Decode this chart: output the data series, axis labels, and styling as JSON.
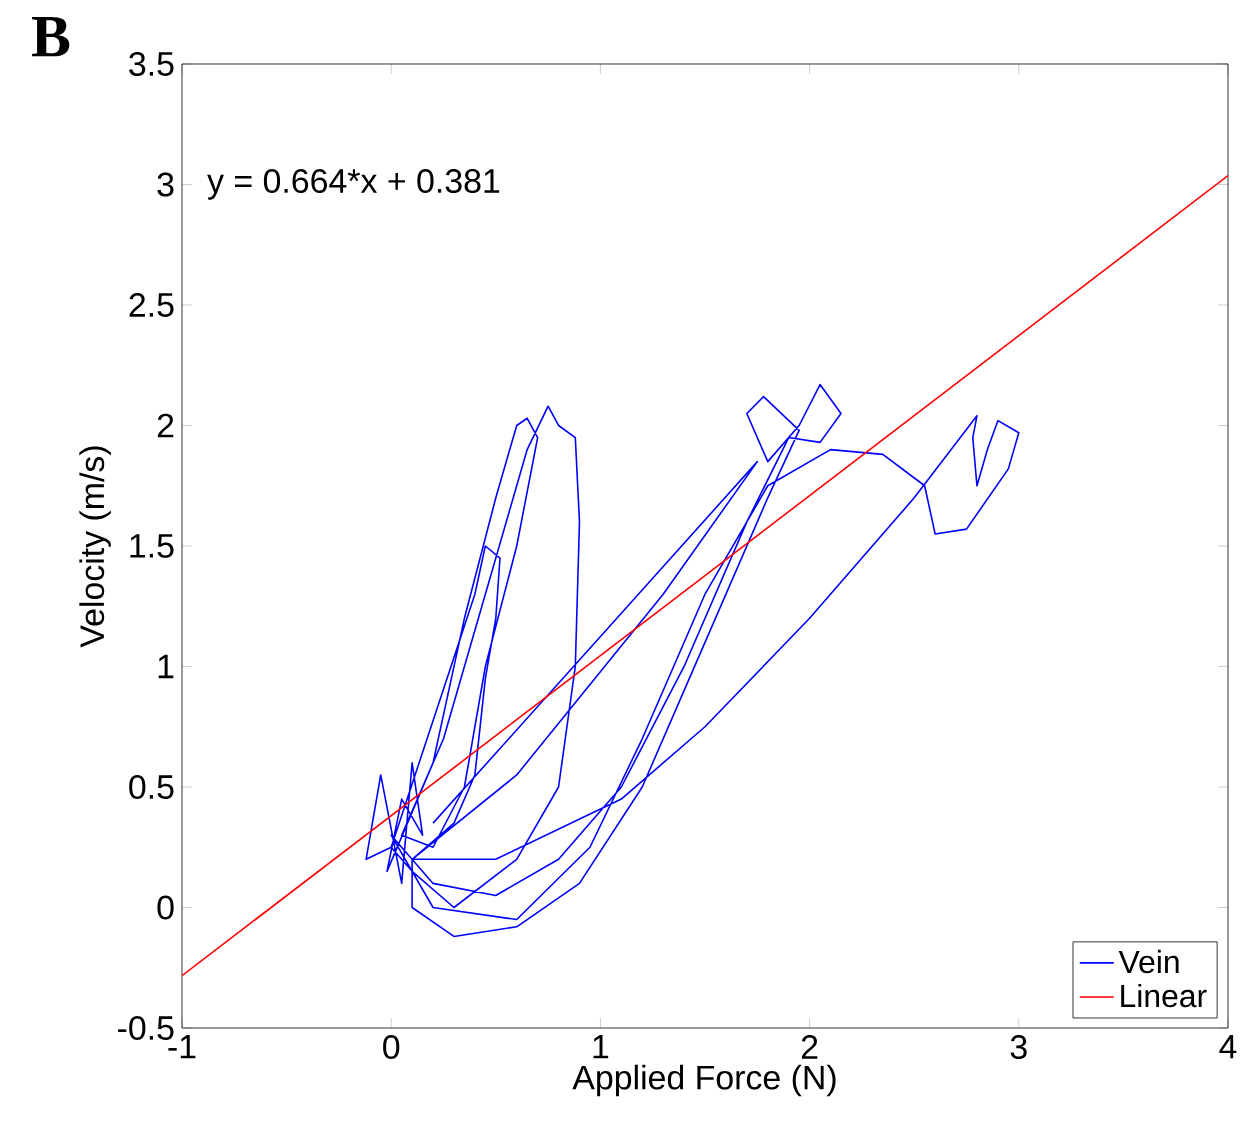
{
  "chart_data": {
    "type": "line",
    "xlabel": "Applied Force (N)",
    "ylabel": "Velocity (m/s)",
    "annotations": [
      "B",
      "y = 0.664*x + 0.381"
    ],
    "xlim": [
      -1,
      4
    ],
    "xticks": [
      -1,
      0,
      1,
      2,
      3,
      4
    ],
    "ylim": [
      -0.5,
      3.5
    ],
    "yticks": [
      -0.5,
      0,
      0.5,
      1,
      1.5,
      2,
      2.5,
      3,
      3.5
    ],
    "grid": false,
    "legend": "bottom right",
    "marker": "none",
    "line_style": "solid",
    "series": [
      {
        "name": "Vein",
        "color": "#0000ff",
        "x": [
          0,
          -0.12,
          -0.05,
          0.05,
          0.1,
          0.15,
          0.05,
          -0.02,
          0.2,
          0.35,
          0.5,
          0.6,
          0.65,
          0.7,
          0.6,
          0.45,
          0.35,
          0.2,
          0.05,
          0.25,
          0.45,
          0.65,
          0.75,
          0.8,
          0.88,
          0.9,
          0.88,
          0.8,
          0.6,
          0.3,
          0.1,
          0.0,
          0.4,
          0.45,
          0.52,
          0.5,
          0.45,
          0.4,
          0.3,
          0.1,
          0.1,
          0.3,
          0.6,
          0.9,
          1.2,
          1.5,
          1.8,
          1.95,
          1.78,
          1.7,
          1.8,
          1.95,
          2.05,
          2.15,
          2.05,
          1.9,
          1.7,
          1.4,
          1.1,
          0.8,
          0.5,
          0.2,
          0.0,
          0.2,
          0.6,
          0.95,
          1.2,
          1.5,
          1.8,
          2.1,
          2.35,
          2.55,
          2.6,
          2.75,
          2.95,
          3.0,
          2.9,
          2.85,
          2.8,
          2.78,
          2.8,
          2.5,
          2.0,
          1.5,
          1.1,
          0.5,
          0.1,
          0.6,
          1.3,
          1.75,
          0.2
        ],
        "values": [
          0.25,
          0.2,
          0.55,
          0.1,
          0.6,
          0.3,
          0.45,
          0.15,
          0.6,
          1.2,
          1.7,
          2.0,
          2.03,
          1.95,
          1.5,
          1.0,
          0.5,
          0.25,
          0.3,
          0.7,
          1.3,
          1.9,
          2.08,
          2.0,
          1.95,
          1.6,
          1.0,
          0.5,
          0.2,
          0.0,
          0.15,
          0.25,
          1.3,
          1.5,
          1.45,
          1.2,
          0.95,
          0.55,
          0.35,
          0.2,
          0.0,
          -0.12,
          -0.08,
          0.1,
          0.5,
          1.1,
          1.7,
          1.98,
          2.12,
          2.05,
          1.85,
          2.0,
          2.17,
          2.05,
          1.93,
          1.95,
          1.6,
          1.0,
          0.5,
          0.2,
          0.05,
          0.1,
          0.3,
          0.0,
          -0.05,
          0.25,
          0.7,
          1.3,
          1.75,
          1.9,
          1.88,
          1.75,
          1.55,
          1.57,
          1.82,
          1.97,
          2.02,
          1.9,
          1.75,
          1.95,
          2.04,
          1.7,
          1.2,
          0.75,
          0.45,
          0.2,
          0.2,
          0.55,
          1.3,
          1.85,
          0.35
        ]
      },
      {
        "name": "Linear",
        "color": "#ff0000",
        "x": [
          -1,
          4
        ],
        "values": [
          -0.283,
          3.037
        ]
      }
    ]
  }
}
